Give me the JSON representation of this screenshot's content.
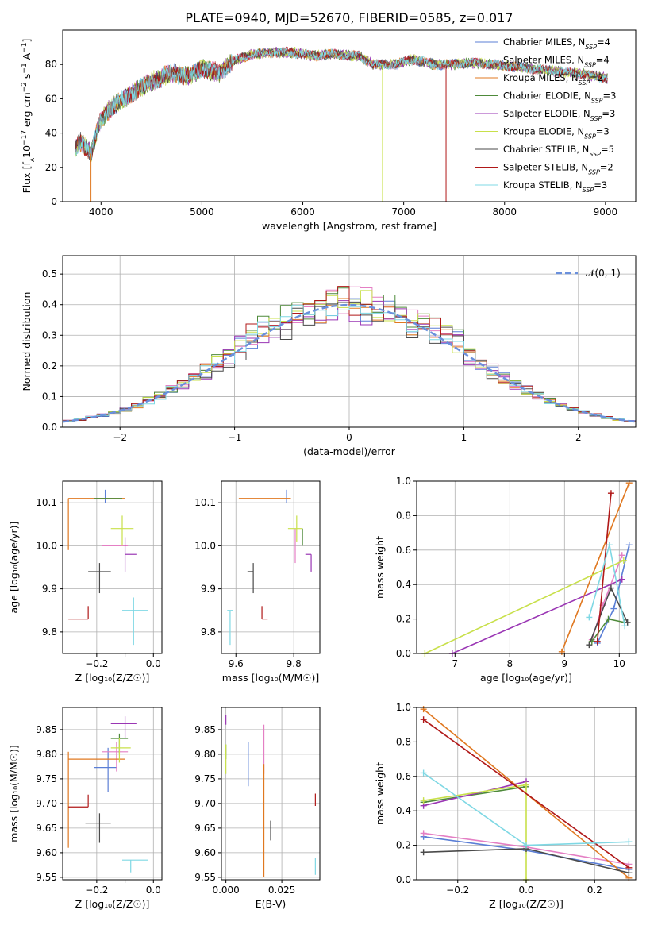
{
  "title": "PLATE=0940, MJD=52670, FIBERID=0585, z=0.017",
  "colors": {
    "chab_miles": "#5b7fd6",
    "salp_miles": "#e47fc4",
    "krou_miles": "#e07820",
    "chab_elodie": "#4e8a3a",
    "salp_elodie": "#9a36b4",
    "krou_elodie": "#c8e04a",
    "chab_stelib": "#4a4a4a",
    "salp_stelib": "#b01818",
    "krou_stelib": "#7fd8e4",
    "normal_curve": "#6a90dc"
  },
  "chart_data": [
    {
      "id": "spectrum",
      "type": "line",
      "xlabel": "wavelength [Angstrom, rest frame]",
      "ylabel_pre": "Flux [f",
      "ylabel_sub": "λ",
      "ylabel_mid": "10",
      "ylabel_sup": "−17",
      "ylabel_post": " erg cm",
      "ylabel_sup2": "−2",
      "ylabel_post2": " s",
      "ylabel_sup3": "−1",
      "ylabel_post3": " A",
      "ylabel_sup4": "−1",
      "ylabel_end": "]",
      "xlim": [
        3620,
        9300
      ],
      "ylim": [
        0,
        100
      ],
      "xticks": [
        4000,
        5000,
        6000,
        7000,
        8000,
        9000
      ],
      "yticks": [
        0,
        20,
        40,
        60,
        80
      ],
      "legend_position": "upper-right",
      "grid": false,
      "continuum": {
        "x": [
          3740,
          3800,
          3900,
          3980,
          4050,
          4150,
          4300,
          4500,
          4700,
          4860,
          5000,
          5180,
          5300,
          5500,
          5700,
          5900,
          6100,
          6300,
          6560,
          6700,
          6900,
          7100,
          7300,
          7500,
          7700,
          7900,
          8200,
          8500,
          8700,
          9020
        ],
        "y": [
          30,
          35,
          28,
          45,
          52,
          57,
          63,
          70,
          75,
          73,
          78,
          75,
          82,
          86,
          87,
          87,
          85,
          86,
          85,
          80,
          80,
          83,
          80,
          80,
          81,
          80,
          78,
          76,
          75,
          72
        ]
      },
      "dips": [
        {
          "series": "Kroupa MILES",
          "x": 3900,
          "y": 0
        },
        {
          "series": "Kroupa ELODIE",
          "x": 6790,
          "y": 0
        },
        {
          "series": "Salpeter STELIB",
          "x": 7420,
          "y": 0
        }
      ],
      "legend": [
        {
          "key": "chab_miles",
          "pre": "Chabrier MILES, N",
          "sub": "SSP",
          "post": "=4"
        },
        {
          "key": "salp_miles",
          "pre": "Salpeter MILES, N",
          "sub": "SSP",
          "post": "=4"
        },
        {
          "key": "krou_miles",
          "pre": "Kroupa MILES, N",
          "sub": "SSP",
          "post": "=2"
        },
        {
          "key": "chab_elodie",
          "pre": "Chabrier ELODIE, N",
          "sub": "SSP",
          "post": "=3"
        },
        {
          "key": "salp_elodie",
          "pre": "Salpeter ELODIE, N",
          "sub": "SSP",
          "post": "=3"
        },
        {
          "key": "krou_elodie",
          "pre": "Kroupa ELODIE, N",
          "sub": "SSP",
          "post": "=3"
        },
        {
          "key": "chab_stelib",
          "pre": "Chabrier STELIB, N",
          "sub": "SSP",
          "post": "=5"
        },
        {
          "key": "salp_stelib",
          "pre": "Salpeter STELIB, N",
          "sub": "SSP",
          "post": "=2"
        },
        {
          "key": "krou_stelib",
          "pre": "Kroupa STELIB, N",
          "sub": "SSP",
          "post": "=3"
        }
      ]
    },
    {
      "id": "residuals",
      "type": "histogram",
      "xlabel": "(data-model)/error",
      "ylabel": "Normed distribution",
      "xlim": [
        -2.5,
        2.5
      ],
      "ylim": [
        0,
        0.56
      ],
      "xticks": [
        -2,
        -1,
        0,
        1,
        2
      ],
      "yticks": [
        0.0,
        0.1,
        0.2,
        0.3,
        0.4,
        0.5
      ],
      "grid": true,
      "bin_width": 0.1,
      "legend": {
        "pre": "𝒩(0, 1)"
      },
      "normal_mean": 0,
      "normal_sigma": 1,
      "series_offsets": [
        0.0,
        0.012,
        -0.01,
        0.02,
        -0.015,
        0.008,
        -0.02,
        0.015,
        -0.005
      ]
    },
    {
      "id": "age_vs_Z",
      "type": "scatter-errorbar",
      "xlabel": "Z [log₁₀(Z/Z☉)]",
      "ylabel": "age  [log₁₀(age/yr)]",
      "xlim": [
        -0.32,
        0.03
      ],
      "ylim": [
        9.75,
        10.15
      ],
      "xticks": [
        -0.2,
        -0.1,
        0.0
      ],
      "xticklabels": [
        "−0.2",
        "",
        "0.0"
      ],
      "yticks": [
        9.8,
        9.9,
        10.0,
        10.1
      ],
      "points": [
        {
          "key": "chab_miles",
          "x": -0.17,
          "y": 10.11,
          "xe": [
            0.0,
            0.0
          ],
          "ye": [
            0.01,
            0.02
          ]
        },
        {
          "key": "salp_miles",
          "x": -0.13,
          "y": 10.0,
          "xe": [
            0.05,
            0.04
          ],
          "ye": [
            0.0,
            0.0
          ]
        },
        {
          "key": "krou_miles",
          "x": -0.3,
          "y": 10.11,
          "xe": [
            0.0,
            0.2
          ],
          "ye": [
            0.12,
            0.0
          ]
        },
        {
          "key": "chab_elodie",
          "x": -0.17,
          "y": 10.11,
          "xe": [
            0.04,
            0.06
          ],
          "ye": [
            0.0,
            0.0
          ]
        },
        {
          "key": "salp_elodie",
          "x": -0.1,
          "y": 9.98,
          "xe": [
            0.0,
            0.04
          ],
          "ye": [
            0.04,
            0.04
          ]
        },
        {
          "key": "krou_elodie",
          "x": -0.11,
          "y": 10.04,
          "xe": [
            0.04,
            0.04
          ],
          "ye": [
            0.04,
            0.03
          ]
        },
        {
          "key": "chab_stelib",
          "x": -0.19,
          "y": 9.94,
          "xe": [
            0.04,
            0.04
          ],
          "ye": [
            0.05,
            0.02
          ]
        },
        {
          "key": "salp_stelib",
          "x": -0.23,
          "y": 9.83,
          "xe": [
            0.07,
            0.0
          ],
          "ye": [
            0.0,
            0.03
          ]
        },
        {
          "key": "krou_stelib",
          "x": -0.07,
          "y": 9.85,
          "xe": [
            0.04,
            0.05
          ],
          "ye": [
            0.08,
            0.03
          ]
        }
      ]
    },
    {
      "id": "age_vs_mass",
      "type": "scatter-errorbar",
      "xlabel": "mass [log₁₀(M/M☉)]",
      "ylabel": "",
      "xlim": [
        9.55,
        9.89
      ],
      "ylim": [
        9.75,
        10.15
      ],
      "xticks": [
        9.6,
        9.8
      ],
      "xticklabels": [
        "9.6",
        "9.8"
      ],
      "yticks": [
        9.8,
        9.9,
        10.0,
        10.1
      ],
      "points": [
        {
          "key": "chab_miles",
          "x": 9.775,
          "y": 10.11,
          "xe": [
            0.0,
            0.0
          ],
          "ye": [
            0.01,
            0.02
          ]
        },
        {
          "key": "salp_miles",
          "x": 9.805,
          "y": 10.0,
          "xe": [
            0.0,
            0.0
          ],
          "ye": [
            0.04,
            0.04
          ]
        },
        {
          "key": "krou_miles",
          "x": 9.79,
          "y": 10.11,
          "xe": [
            0.18,
            0.0
          ],
          "ye": [
            0.0,
            0.0
          ]
        },
        {
          "key": "chab_elodie",
          "x": 9.83,
          "y": 10.04,
          "xe": [
            0.0,
            0.0
          ],
          "ye": [
            0.04,
            0.0
          ]
        },
        {
          "key": "salp_elodie",
          "x": 9.86,
          "y": 9.98,
          "xe": [
            0.02,
            0.0
          ],
          "ye": [
            0.04,
            0.0
          ]
        },
        {
          "key": "krou_elodie",
          "x": 9.81,
          "y": 10.04,
          "xe": [
            0.03,
            0.02
          ],
          "ye": [
            0.03,
            0.03
          ]
        },
        {
          "key": "chab_stelib",
          "x": 9.66,
          "y": 9.94,
          "xe": [
            0.02,
            0.0
          ],
          "ye": [
            0.05,
            0.02
          ]
        },
        {
          "key": "salp_stelib",
          "x": 9.69,
          "y": 9.83,
          "xe": [
            0.0,
            0.02
          ],
          "ye": [
            0.0,
            0.03
          ]
        },
        {
          "key": "krou_stelib",
          "x": 9.58,
          "y": 9.85,
          "xe": [
            0.01,
            0.01
          ],
          "ye": [
            0.08,
            0.0
          ]
        }
      ]
    },
    {
      "id": "weight_vs_age",
      "type": "line-marker",
      "xlabel": "age  [log₁₀(age/yr)]",
      "ylabel": "mass weight",
      "xlim": [
        6.3,
        10.3
      ],
      "ylim": [
        0,
        1.0
      ],
      "xticks": [
        7,
        8,
        9,
        10
      ],
      "yticks": [
        0.0,
        0.2,
        0.4,
        0.6,
        0.8,
        1.0
      ],
      "grid": true,
      "series": [
        {
          "key": "chab_miles",
          "x": [
            9.6,
            9.9,
            10.18
          ],
          "y": [
            0.06,
            0.26,
            0.63
          ]
        },
        {
          "key": "salp_miles",
          "x": [
            9.5,
            9.7,
            10.05
          ],
          "y": [
            0.08,
            0.28,
            0.57
          ]
        },
        {
          "key": "krou_miles",
          "x": [
            8.95,
            10.18
          ],
          "y": [
            0.01,
            0.99
          ]
        },
        {
          "key": "chab_elodie",
          "x": [
            9.5,
            9.8,
            10.1
          ],
          "y": [
            0.07,
            0.2,
            0.18
          ]
        },
        {
          "key": "salp_elodie",
          "x": [
            6.95,
            10.05
          ],
          "y": [
            0.0,
            0.43
          ]
        },
        {
          "key": "krou_elodie",
          "x": [
            6.45,
            10.08
          ],
          "y": [
            0.0,
            0.54
          ]
        },
        {
          "key": "chab_stelib",
          "x": [
            9.45,
            9.85,
            10.15
          ],
          "y": [
            0.05,
            0.38,
            0.18
          ]
        },
        {
          "key": "salp_stelib",
          "x": [
            9.6,
            9.85
          ],
          "y": [
            0.07,
            0.93
          ]
        },
        {
          "key": "krou_stelib",
          "x": [
            9.45,
            9.82,
            10.1
          ],
          "y": [
            0.21,
            0.63,
            0.16
          ]
        }
      ]
    },
    {
      "id": "mass_vs_Z",
      "type": "scatter-errorbar",
      "xlabel": "Z [log₁₀(Z/Z☉)]",
      "ylabel": "mass [log₁₀(M/M☉)]",
      "xlim": [
        -0.32,
        0.03
      ],
      "ylim": [
        9.545,
        9.895
      ],
      "xticks": [
        -0.2,
        -0.1,
        0.0
      ],
      "xticklabels": [
        "−0.2",
        "",
        "0.0"
      ],
      "yticks": [
        9.55,
        9.6,
        9.65,
        9.7,
        9.75,
        9.8,
        9.85
      ],
      "points": [
        {
          "key": "chab_miles",
          "x": -0.16,
          "y": 9.773,
          "xe": [
            0.05,
            0.03
          ],
          "ye": [
            0.05,
            0.04
          ]
        },
        {
          "key": "salp_miles",
          "x": -0.13,
          "y": 9.805,
          "xe": [
            0.05,
            0.04
          ],
          "ye": [
            0.04,
            0.02
          ]
        },
        {
          "key": "krou_miles",
          "x": -0.3,
          "y": 9.79,
          "xe": [
            0.0,
            0.2
          ],
          "ye": [
            0.18,
            0.015
          ]
        },
        {
          "key": "chab_elodie",
          "x": -0.12,
          "y": 9.832,
          "xe": [
            0.03,
            0.03
          ],
          "ye": [
            0.03,
            0.01
          ]
        },
        {
          "key": "salp_elodie",
          "x": -0.1,
          "y": 9.862,
          "xe": [
            0.05,
            0.04
          ],
          "ye": [
            0.03,
            0.015
          ]
        },
        {
          "key": "krou_elodie",
          "x": -0.12,
          "y": 9.813,
          "xe": [
            0.03,
            0.04
          ],
          "ye": [
            0.03,
            0.02
          ]
        },
        {
          "key": "chab_stelib",
          "x": -0.19,
          "y": 9.66,
          "xe": [
            0.05,
            0.04
          ],
          "ye": [
            0.04,
            0.02
          ]
        },
        {
          "key": "salp_stelib",
          "x": -0.23,
          "y": 9.693,
          "xe": [
            0.07,
            0.0
          ],
          "ye": [
            0.0,
            0.025
          ]
        },
        {
          "key": "krou_stelib",
          "x": -0.08,
          "y": 9.585,
          "xe": [
            0.03,
            0.06
          ],
          "ye": [
            0.025,
            0.0
          ]
        }
      ]
    },
    {
      "id": "mass_vs_ebv",
      "type": "scatter-errorbar",
      "xlabel": "E(B-V)",
      "ylabel": "",
      "xlim": [
        -0.002,
        0.042
      ],
      "ylim": [
        9.545,
        9.895
      ],
      "xticks": [
        0.0,
        0.025
      ],
      "xticklabels": [
        "0.000",
        "0.025"
      ],
      "yticks": [
        9.55,
        9.6,
        9.65,
        9.7,
        9.75,
        9.8,
        9.85
      ],
      "points": [
        {
          "key": "chab_miles",
          "x": 0.01,
          "y": 9.775,
          "xe": [
            0.0,
            0.0
          ],
          "ye": [
            0.04,
            0.05
          ]
        },
        {
          "key": "salp_miles",
          "x": 0.017,
          "y": 9.8,
          "xe": [
            0.0,
            0.0
          ],
          "ye": [
            0.04,
            0.06
          ]
        },
        {
          "key": "krou_miles",
          "x": 0.017,
          "y": 9.69,
          "xe": [
            0.0,
            0.0
          ],
          "ye": [
            0.14,
            0.09
          ]
        },
        {
          "key": "chab_elodie",
          "x": 0.0,
          "y": 9.8,
          "xe": [
            0.0,
            0.0
          ],
          "ye": [
            0.01,
            0.02
          ]
        },
        {
          "key": "salp_elodie",
          "x": 0.0,
          "y": 9.86,
          "xe": [
            0.0,
            0.0
          ],
          "ye": [
            0.0,
            0.02
          ]
        },
        {
          "key": "krou_elodie",
          "x": 0.0,
          "y": 9.78,
          "xe": [
            0.0,
            0.0
          ],
          "ye": [
            0.02,
            0.04
          ]
        },
        {
          "key": "chab_stelib",
          "x": 0.02,
          "y": 9.645,
          "xe": [
            0.0,
            0.0
          ],
          "ye": [
            0.02,
            0.02
          ]
        },
        {
          "key": "salp_stelib",
          "x": 0.04,
          "y": 9.705,
          "xe": [
            0.0,
            0.0
          ],
          "ye": [
            0.01,
            0.015
          ]
        },
        {
          "key": "krou_stelib",
          "x": 0.04,
          "y": 9.575,
          "xe": [
            0.0,
            0.0
          ],
          "ye": [
            0.02,
            0.015
          ]
        }
      ]
    },
    {
      "id": "weight_vs_Z",
      "type": "line-marker",
      "xlabel": "Z [log₁₀(Z/Z☉)]",
      "ylabel": "mass weight",
      "xlim": [
        -0.32,
        0.32
      ],
      "ylim": [
        0,
        1.0
      ],
      "xticks": [
        -0.2,
        0.0,
        0.2
      ],
      "xticklabels": [
        "−0.2",
        "0.0",
        "0.2"
      ],
      "yticks": [
        0.0,
        0.2,
        0.4,
        0.6,
        0.8,
        1.0
      ],
      "grid": true,
      "series": [
        {
          "key": "chab_miles",
          "x": [
            -0.3,
            0.0,
            0.3
          ],
          "y": [
            0.25,
            0.17,
            0.06
          ]
        },
        {
          "key": "salp_miles",
          "x": [
            -0.3,
            0.0,
            0.3
          ],
          "y": [
            0.27,
            0.19,
            0.09
          ]
        },
        {
          "key": "krou_miles",
          "x": [
            -0.3,
            0.3
          ],
          "y": [
            0.99,
            0.01
          ]
        },
        {
          "key": "chab_elodie",
          "x": [
            -0.3,
            0.0
          ],
          "y": [
            0.45,
            0.54
          ]
        },
        {
          "key": "salp_elodie",
          "x": [
            -0.3,
            0.0
          ],
          "y": [
            0.43,
            0.57
          ]
        },
        {
          "key": "krou_elodie",
          "x": [
            -0.3,
            0.0,
            0.0
          ],
          "y": [
            0.46,
            0.55,
            0.0
          ]
        },
        {
          "key": "chab_stelib",
          "x": [
            -0.3,
            0.0,
            0.3
          ],
          "y": [
            0.16,
            0.18,
            0.04
          ]
        },
        {
          "key": "salp_stelib",
          "x": [
            -0.3,
            0.3
          ],
          "y": [
            0.93,
            0.07
          ]
        },
        {
          "key": "krou_stelib",
          "x": [
            -0.3,
            0.0,
            0.3
          ],
          "y": [
            0.62,
            0.2,
            0.22
          ]
        }
      ]
    }
  ]
}
